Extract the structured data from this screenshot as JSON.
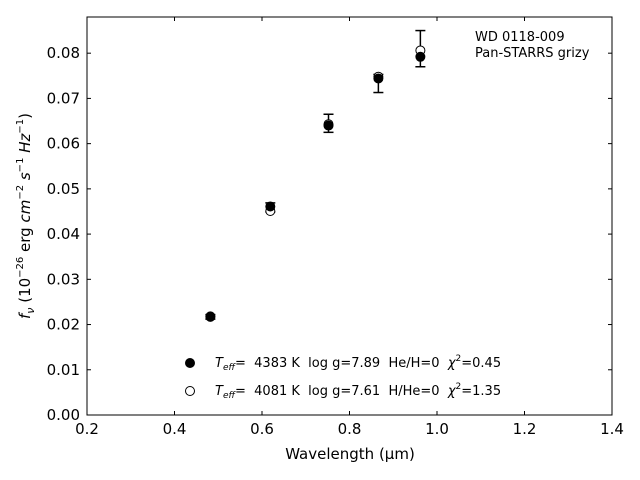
{
  "chart_data": {
    "type": "scatter",
    "title": "",
    "xlabel": "Wavelength (μm)",
    "ylabel": "f_ν (10^-26 erg cm^-2 s^-1 Hz^-1)",
    "xlim": [
      0.2,
      1.4
    ],
    "ylim": [
      0.0,
      0.088
    ],
    "xticks": [
      0.2,
      0.4,
      0.6,
      0.8,
      1.0,
      1.2,
      1.4
    ],
    "xtick_labels": [
      "0.2",
      "0.4",
      "0.6",
      "0.8",
      "1.0",
      "1.2",
      "1.4"
    ],
    "yticks": [
      0.0,
      0.01,
      0.02,
      0.03,
      0.04,
      0.05,
      0.06,
      0.07,
      0.08
    ],
    "ytick_labels": [
      "0.00",
      "0.01",
      "0.02",
      "0.03",
      "0.04",
      "0.05",
      "0.06",
      "0.07",
      "0.08"
    ],
    "grid": false,
    "annotation": [
      "WD 0118-009",
      "Pan-STARRS grizy"
    ],
    "observed": {
      "x": [
        0.482,
        0.619,
        0.752,
        0.866,
        0.962
      ],
      "y": [
        0.0217,
        0.0459,
        0.0645,
        0.0733,
        0.081
      ],
      "yerr": [
        0.0005,
        0.001,
        0.002,
        0.002,
        0.004
      ]
    },
    "series": [
      {
        "marker": "filled",
        "legend_parts": [
          "T",
          "eff",
          "=  4383 K  log g=7.89  He/H=0  ",
          "χ",
          "2",
          "=0.45"
        ],
        "x": [
          0.482,
          0.619,
          0.752,
          0.866,
          0.962
        ],
        "y": [
          0.0217,
          0.0461,
          0.064,
          0.0744,
          0.0792
        ]
      },
      {
        "marker": "open",
        "legend_parts": [
          "T",
          "eff",
          "=  4081 K  log g=7.61  H/He=0  ",
          "χ",
          "2",
          "=1.35"
        ],
        "x": [
          0.482,
          0.619,
          0.752,
          0.866,
          0.962
        ],
        "y": [
          0.0218,
          0.0451,
          0.0643,
          0.0748,
          0.0806
        ]
      }
    ],
    "legend_position": "lower-center",
    "colors": {
      "marker": "#000000",
      "axis": "#000000",
      "background": "#ffffff"
    }
  }
}
